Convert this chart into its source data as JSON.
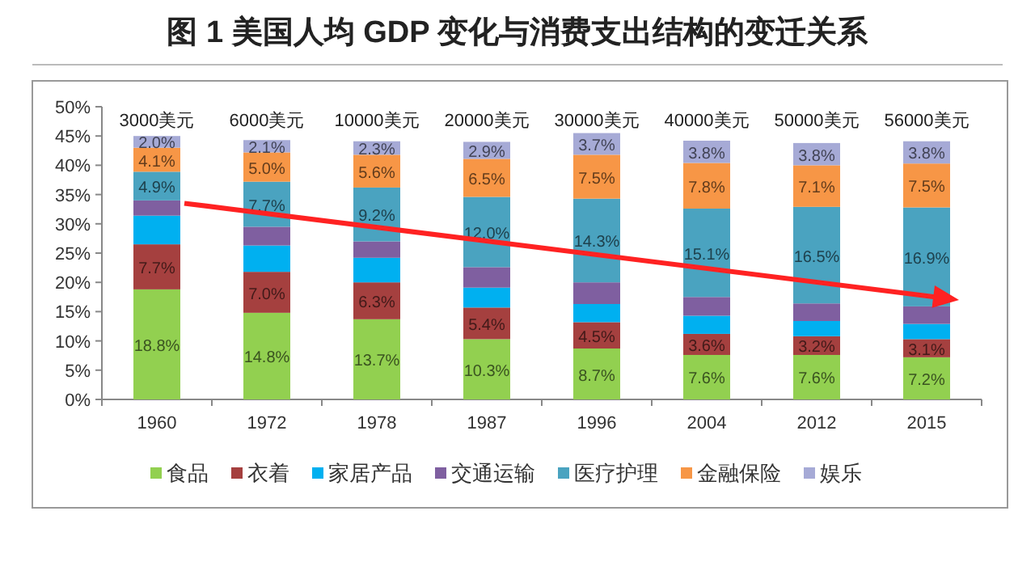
{
  "chart_data": {
    "type": "bar",
    "stacked": true,
    "title": "图 1  美国人均 GDP 变化与消费支出结构的变迁关系",
    "categories": [
      "1960",
      "1972",
      "1978",
      "1987",
      "1996",
      "2004",
      "2012",
      "2015"
    ],
    "series": [
      {
        "name": "食品",
        "color": "#92d050",
        "values": [
          18.8,
          14.8,
          13.7,
          10.3,
          8.7,
          7.6,
          7.6,
          7.2
        ],
        "value_labels": [
          "18.8%",
          "14.8%",
          "13.7%",
          "10.3%",
          "8.7%",
          "7.6%",
          "7.6%",
          "7.2%"
        ]
      },
      {
        "name": "衣着",
        "color": "#a5403f",
        "values": [
          7.7,
          7.0,
          6.3,
          5.4,
          4.5,
          3.6,
          3.2,
          3.1
        ],
        "value_labels": [
          "7.7%",
          "7.0%",
          "6.3%",
          "5.4%",
          "4.5%",
          "3.6%",
          "3.2%",
          "3.1%"
        ]
      },
      {
        "name": "家居产品",
        "color": "#00b0f0",
        "values": [
          4.9,
          4.5,
          4.2,
          3.4,
          3.1,
          3.1,
          2.6,
          2.6
        ]
      },
      {
        "name": "交通运输",
        "color": "#7f5fa0",
        "values": [
          2.6,
          3.2,
          2.8,
          3.5,
          3.7,
          3.2,
          3.0,
          3.0
        ]
      },
      {
        "name": "医疗护理",
        "color": "#4aa3c0",
        "values": [
          4.9,
          7.7,
          9.2,
          12.0,
          14.3,
          15.1,
          16.5,
          16.9
        ],
        "value_labels": [
          "4.9%",
          "7.7%",
          "9.2%",
          "12.0%",
          "14.3%",
          "15.1%",
          "16.5%",
          "16.9%"
        ]
      },
      {
        "name": "金融保险",
        "color": "#f79646",
        "values": [
          4.1,
          5.0,
          5.6,
          6.5,
          7.5,
          7.8,
          7.1,
          7.5
        ],
        "value_labels": [
          "4.1%",
          "5.0%",
          "5.6%",
          "6.5%",
          "7.5%",
          "7.8%",
          "7.1%",
          "7.5%"
        ]
      },
      {
        "name": "娱乐",
        "color": "#a6aad6",
        "values": [
          2.0,
          2.1,
          2.3,
          2.9,
          3.7,
          3.8,
          3.8,
          3.8
        ],
        "value_labels": [
          "2.0%",
          "2.1%",
          "2.3%",
          "2.9%",
          "3.7%",
          "3.8%",
          "3.8%",
          "3.8%"
        ]
      }
    ],
    "ylim": [
      0,
      50
    ],
    "yticks": [
      {
        "value": 0,
        "label": "0%"
      },
      {
        "value": 5,
        "label": "5%"
      },
      {
        "value": 10,
        "label": "10%"
      },
      {
        "value": 15,
        "label": "15%"
      },
      {
        "value": 20,
        "label": "20%"
      },
      {
        "value": 25,
        "label": "25%"
      },
      {
        "value": 30,
        "label": "30%"
      },
      {
        "value": 35,
        "label": "35%"
      },
      {
        "value": 40,
        "label": "40%"
      },
      {
        "value": 45,
        "label": "45%"
      },
      {
        "value": 50,
        "label": "50%"
      }
    ],
    "annotations": [
      "3000美元",
      "6000美元",
      "10000美元",
      "20000美元",
      "30000美元",
      "40000美元",
      "50000美元",
      "56000美元"
    ],
    "legend": "bottom"
  }
}
